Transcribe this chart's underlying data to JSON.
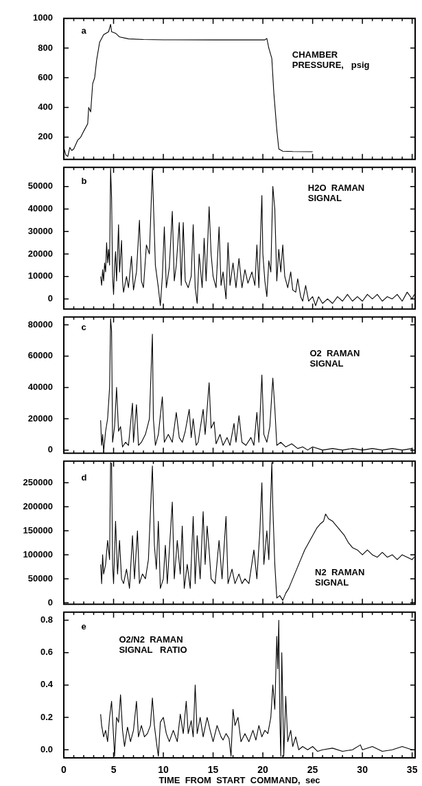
{
  "chart_data": [
    {
      "type": "line",
      "annotations": [
        "a",
        "CHAMBER\nPRESSURE,   psig"
      ],
      "tick_labels": "y",
      "xlim": [
        0,
        35.3
      ],
      "ylim": [
        50,
        1000
      ],
      "xticks": [
        0,
        {
          "value": 1,
          "label": null
        },
        {
          "value": 2,
          "label": null
        },
        {
          "value": 3,
          "label": null
        },
        {
          "value": 4,
          "label": null
        },
        5,
        {
          "value": 6,
          "label": null
        },
        {
          "value": 7,
          "label": null
        },
        {
          "value": 8,
          "label": null
        },
        {
          "value": 9,
          "label": null
        },
        10,
        {
          "value": 11,
          "label": null
        },
        {
          "value": 12,
          "label": null
        },
        {
          "value": 13,
          "label": null
        },
        {
          "value": 14,
          "label": null
        },
        15,
        {
          "value": 16,
          "label": null
        },
        {
          "value": 17,
          "label": null
        },
        {
          "value": 18,
          "label": null
        },
        {
          "value": 19,
          "label": null
        },
        20,
        {
          "value": 21,
          "label": null
        },
        {
          "value": 22,
          "label": null
        },
        {
          "value": 23,
          "label": null
        },
        {
          "value": 24,
          "label": null
        },
        25,
        {
          "value": 26,
          "label": null
        },
        {
          "value": 27,
          "label": null
        },
        {
          "value": 28,
          "label": null
        },
        {
          "value": 29,
          "label": null
        },
        30,
        {
          "value": 31,
          "label": null
        },
        {
          "value": 32,
          "label": null
        },
        {
          "value": 33,
          "label": null
        },
        {
          "value": 34,
          "label": null
        },
        35
      ],
      "yticks": [
        200,
        400,
        600,
        800,
        1000
      ],
      "x": [
        0,
        0.2,
        0.4,
        0.6,
        0.8,
        1.0,
        1.4,
        1.7,
        2.0,
        2.4,
        2.5,
        2.7,
        2.9,
        3.1,
        3.3,
        3.6,
        4.0,
        4.5,
        4.7,
        4.8,
        5.2,
        5.6,
        6.5,
        8,
        10,
        15,
        19,
        20.2,
        20.4,
        20.6,
        20.9,
        21.1,
        21.4,
        21.6,
        22,
        23,
        25
      ],
      "series": [
        {
          "color": "#000000",
          "values": [
            130,
            80,
            70,
            130,
            110,
            120,
            180,
            200,
            240,
            290,
            400,
            370,
            560,
            600,
            720,
            840,
            890,
            910,
            960,
            910,
            900,
            875,
            862,
            858,
            856,
            855,
            855,
            855,
            865,
            800,
            730,
            500,
            250,
            120,
            105,
            103,
            102
          ]
        }
      ]
    },
    {
      "type": "line",
      "annotations": [
        "b",
        "H2O  RAMAN\nSIGNAL"
      ],
      "tick_labels": "y",
      "xlim": [
        0,
        35.3
      ],
      "ylim": [
        -4500,
        58500
      ],
      "xticks": [
        0,
        {
          "value": 1,
          "label": null
        },
        {
          "value": 2,
          "label": null
        },
        {
          "value": 3,
          "label": null
        },
        {
          "value": 4,
          "label": null
        },
        5,
        {
          "value": 6,
          "label": null
        },
        {
          "value": 7,
          "label": null
        },
        {
          "value": 8,
          "label": null
        },
        {
          "value": 9,
          "label": null
        },
        10,
        {
          "value": 11,
          "label": null
        },
        {
          "value": 12,
          "label": null
        },
        {
          "value": 13,
          "label": null
        },
        {
          "value": 14,
          "label": null
        },
        15,
        {
          "value": 16,
          "label": null
        },
        {
          "value": 17,
          "label": null
        },
        {
          "value": 18,
          "label": null
        },
        {
          "value": 19,
          "label": null
        },
        20,
        {
          "value": 21,
          "label": null
        },
        {
          "value": 22,
          "label": null
        },
        {
          "value": 23,
          "label": null
        },
        {
          "value": 24,
          "label": null
        },
        25,
        {
          "value": 26,
          "label": null
        },
        {
          "value": 27,
          "label": null
        },
        {
          "value": 28,
          "label": null
        },
        {
          "value": 29,
          "label": null
        },
        30,
        {
          "value": 31,
          "label": null
        },
        {
          "value": 32,
          "label": null
        },
        {
          "value": 33,
          "label": null
        },
        {
          "value": 34,
          "label": null
        },
        35
      ],
      "yticks": [
        0,
        10000,
        20000,
        30000,
        40000,
        50000
      ],
      "x": [
        3.7,
        3.8,
        3.9,
        4.0,
        4.1,
        4.2,
        4.3,
        4.4,
        4.5,
        4.6,
        4.7,
        4.8,
        4.9,
        5.0,
        5.1,
        5.2,
        5.3,
        5.5,
        5.6,
        5.8,
        5.9,
        6.0,
        6.3,
        6.5,
        6.8,
        7.0,
        7.3,
        7.6,
        7.8,
        8.0,
        8.3,
        8.6,
        8.9,
        9.0,
        9.2,
        9.5,
        9.7,
        9.9,
        10.1,
        10.3,
        10.6,
        10.9,
        11.1,
        11.3,
        11.6,
        11.8,
        12.0,
        12.2,
        12.5,
        12.8,
        13.0,
        13.2,
        13.4,
        13.6,
        13.9,
        14.1,
        14.3,
        14.6,
        14.8,
        15.0,
        15.3,
        15.6,
        15.8,
        16.0,
        16.3,
        16.5,
        16.7,
        17.0,
        17.3,
        17.6,
        17.9,
        18.2,
        18.5,
        18.9,
        19.2,
        19.4,
        19.6,
        19.9,
        20.0,
        20.2,
        20.4,
        20.6,
        20.8,
        21.0,
        21.2,
        21.4,
        21.6,
        21.8,
        22.0,
        22.2,
        22.5,
        22.8,
        23.0,
        23.3,
        23.5,
        23.8,
        24.0,
        24.3,
        24.6,
        25.0,
        25.3,
        25.6,
        26.0,
        26.5,
        27.0,
        27.5,
        28.0,
        28.5,
        29.0,
        29.5,
        30.0,
        30.5,
        31.0,
        31.5,
        32.0,
        32.5,
        33.0,
        33.5,
        34.0,
        34.5,
        35.0,
        35.2
      ],
      "series": [
        {
          "color": "#000000",
          "values": [
            10000,
            6000,
            13000,
            8000,
            16000,
            12000,
            25000,
            16000,
            22000,
            15000,
            58000,
            45000,
            10000,
            2000,
            14000,
            21000,
            8000,
            33000,
            12000,
            26000,
            8000,
            3000,
            10000,
            5000,
            19000,
            4000,
            12000,
            35000,
            8000,
            5000,
            24000,
            20000,
            58000,
            43000,
            15000,
            5000,
            -3000,
            10000,
            32000,
            5000,
            14000,
            39000,
            8000,
            15000,
            34000,
            6000,
            34000,
            8000,
            5000,
            10000,
            33000,
            5000,
            -2000,
            20000,
            5000,
            27000,
            8000,
            41000,
            20000,
            10000,
            5000,
            32000,
            6000,
            12000,
            0,
            25000,
            6000,
            16000,
            5000,
            18000,
            5000,
            13000,
            7000,
            12000,
            6000,
            24000,
            5000,
            46000,
            20000,
            8000,
            1000,
            17000,
            12000,
            50000,
            40000,
            8000,
            22000,
            12000,
            24000,
            10000,
            5000,
            12000,
            4000,
            3000,
            9000,
            1000,
            -1000,
            6000,
            -1000,
            1000,
            -3000,
            1000,
            -2000,
            0,
            -2000,
            1000,
            -1000,
            2000,
            -1000,
            1000,
            -1000,
            2000,
            0,
            2000,
            -1000,
            1000,
            0,
            2000,
            -1000,
            3000,
            0,
            2000
          ]
        }
      ]
    },
    {
      "type": "line",
      "annotations": [
        "c",
        "O2  RAMAN\nSIGNAL"
      ],
      "tick_labels": "y",
      "xlim": [
        0,
        35.3
      ],
      "ylim": [
        -2000,
        85000
      ],
      "xticks": [
        0,
        {
          "value": 1,
          "label": null
        },
        {
          "value": 2,
          "label": null
        },
        {
          "value": 3,
          "label": null
        },
        {
          "value": 4,
          "label": null
        },
        5,
        {
          "value": 6,
          "label": null
        },
        {
          "value": 7,
          "label": null
        },
        {
          "value": 8,
          "label": null
        },
        {
          "value": 9,
          "label": null
        },
        10,
        {
          "value": 11,
          "label": null
        },
        {
          "value": 12,
          "label": null
        },
        {
          "value": 13,
          "label": null
        },
        {
          "value": 14,
          "label": null
        },
        15,
        {
          "value": 16,
          "label": null
        },
        {
          "value": 17,
          "label": null
        },
        {
          "value": 18,
          "label": null
        },
        {
          "value": 19,
          "label": null
        },
        20,
        {
          "value": 21,
          "label": null
        },
        {
          "value": 22,
          "label": null
        },
        {
          "value": 23,
          "label": null
        },
        {
          "value": 24,
          "label": null
        },
        25,
        {
          "value": 26,
          "label": null
        },
        {
          "value": 27,
          "label": null
        },
        {
          "value": 28,
          "label": null
        },
        {
          "value": 29,
          "label": null
        },
        30,
        {
          "value": 31,
          "label": null
        },
        {
          "value": 32,
          "label": null
        },
        {
          "value": 33,
          "label": null
        },
        {
          "value": 34,
          "label": null
        },
        35
      ],
      "yticks": [
        0,
        20000,
        40000,
        60000,
        80000
      ],
      "x": [
        3.7,
        3.8,
        3.9,
        4.0,
        4.2,
        4.4,
        4.6,
        4.7,
        4.8,
        4.9,
        5.1,
        5.3,
        5.5,
        5.7,
        5.9,
        6.2,
        6.5,
        6.9,
        7.0,
        7.3,
        7.5,
        7.8,
        8.2,
        8.6,
        8.9,
        9.0,
        9.2,
        9.5,
        9.9,
        10.1,
        10.5,
        10.9,
        11.3,
        11.6,
        11.9,
        12.2,
        12.6,
        12.8,
        13.0,
        13.3,
        13.5,
        14.0,
        14.2,
        14.6,
        14.8,
        15.1,
        15.3,
        15.7,
        16.0,
        16.4,
        16.7,
        17.1,
        17.3,
        17.6,
        17.9,
        18.3,
        18.8,
        19.1,
        19.4,
        19.6,
        19.9,
        20.1,
        20.4,
        20.7,
        21.0,
        21.2,
        21.4,
        21.8,
        22.3,
        22.9,
        23.5,
        24.0,
        24.5,
        25.0,
        26,
        27,
        28,
        29,
        30,
        31,
        32,
        33,
        34,
        35
      ],
      "series": [
        {
          "color": "#000000",
          "values": [
            19000,
            3000,
            10000,
            -1000,
            12000,
            20000,
            40000,
            84000,
            76000,
            5000,
            15000,
            40000,
            12000,
            15000,
            2000,
            5000,
            3000,
            30000,
            5000,
            29000,
            3000,
            5000,
            10000,
            20000,
            74000,
            20000,
            3000,
            10000,
            34000,
            5000,
            10000,
            5000,
            24000,
            8000,
            5000,
            12000,
            26000,
            8000,
            20000,
            3000,
            5000,
            26000,
            10000,
            43000,
            14000,
            18000,
            4000,
            10000,
            3000,
            8000,
            3000,
            17000,
            5000,
            22000,
            5000,
            3000,
            8000,
            3000,
            24000,
            5000,
            48000,
            10000,
            5000,
            15000,
            46000,
            27000,
            3000,
            5000,
            2000,
            4000,
            1000,
            2000,
            0,
            2000,
            0,
            1000,
            0,
            1000,
            0,
            1000,
            0,
            1000,
            0,
            1000
          ]
        }
      ]
    },
    {
      "type": "line",
      "annotations": [
        "d",
        "N2  RAMAN\nSIGNAL"
      ],
      "tick_labels": "y",
      "xlim": [
        0,
        35.3
      ],
      "ylim": [
        -3000,
        295000
      ],
      "xticks": [
        0,
        {
          "value": 1,
          "label": null
        },
        {
          "value": 2,
          "label": null
        },
        {
          "value": 3,
          "label": null
        },
        {
          "value": 4,
          "label": null
        },
        5,
        {
          "value": 6,
          "label": null
        },
        {
          "value": 7,
          "label": null
        },
        {
          "value": 8,
          "label": null
        },
        {
          "value": 9,
          "label": null
        },
        10,
        {
          "value": 11,
          "label": null
        },
        {
          "value": 12,
          "label": null
        },
        {
          "value": 13,
          "label": null
        },
        {
          "value": 14,
          "label": null
        },
        15,
        {
          "value": 16,
          "label": null
        },
        {
          "value": 17,
          "label": null
        },
        {
          "value": 18,
          "label": null
        },
        {
          "value": 19,
          "label": null
        },
        20,
        {
          "value": 21,
          "label": null
        },
        {
          "value": 22,
          "label": null
        },
        {
          "value": 23,
          "label": null
        },
        {
          "value": 24,
          "label": null
        },
        25,
        {
          "value": 26,
          "label": null
        },
        {
          "value": 27,
          "label": null
        },
        {
          "value": 28,
          "label": null
        },
        {
          "value": 29,
          "label": null
        },
        30,
        {
          "value": 31,
          "label": null
        },
        {
          "value": 32,
          "label": null
        },
        {
          "value": 33,
          "label": null
        },
        {
          "value": 34,
          "label": null
        },
        35
      ],
      "yticks": [
        0,
        50000,
        100000,
        150000,
        200000,
        250000
      ],
      "x": [
        3.7,
        3.8,
        3.9,
        4.0,
        4.2,
        4.4,
        4.6,
        4.7,
        4.8,
        4.9,
        5.0,
        5.2,
        5.4,
        5.6,
        5.8,
        6.0,
        6.3,
        6.6,
        6.9,
        7.1,
        7.4,
        7.6,
        7.9,
        8.2,
        8.5,
        8.9,
        9.1,
        9.3,
        9.5,
        9.7,
        10.0,
        10.2,
        10.4,
        10.9,
        11.1,
        11.4,
        11.7,
        11.9,
        12.1,
        12.4,
        12.7,
        13.0,
        13.2,
        13.4,
        13.7,
        14.0,
        14.2,
        14.4,
        14.6,
        14.8,
        15.2,
        15.6,
        15.9,
        16.3,
        16.5,
        16.9,
        17.2,
        17.6,
        17.9,
        18.2,
        18.6,
        19.1,
        19.4,
        19.7,
        19.9,
        20.1,
        20.4,
        20.6,
        20.9,
        21.0,
        21.2,
        21.4,
        21.7,
        22.0,
        22.3,
        22.6,
        23.0,
        23.4,
        23.8,
        24.2,
        24.6,
        25.0,
        25.4,
        25.8,
        26.1,
        26.3,
        26.6,
        27.0,
        27.4,
        27.8,
        28.2,
        28.6,
        29.0,
        29.5,
        30.0,
        30.5,
        31.0,
        31.5,
        32.0,
        32.5,
        33.0,
        33.5,
        34.0,
        34.5,
        35.0,
        35.2
      ],
      "series": [
        {
          "color": "#000000",
          "values": [
            80000,
            40000,
            100000,
            60000,
            80000,
            130000,
            90000,
            292000,
            290000,
            80000,
            40000,
            170000,
            60000,
            130000,
            50000,
            40000,
            70000,
            30000,
            140000,
            50000,
            150000,
            40000,
            60000,
            50000,
            90000,
            285000,
            120000,
            70000,
            170000,
            30000,
            50000,
            120000,
            40000,
            210000,
            50000,
            130000,
            60000,
            160000,
            30000,
            80000,
            30000,
            180000,
            40000,
            140000,
            50000,
            190000,
            80000,
            160000,
            110000,
            50000,
            40000,
            130000,
            50000,
            180000,
            40000,
            70000,
            40000,
            60000,
            40000,
            50000,
            40000,
            110000,
            50000,
            150000,
            250000,
            80000,
            150000,
            90000,
            292000,
            200000,
            80000,
            10000,
            15000,
            5000,
            20000,
            30000,
            50000,
            70000,
            90000,
            110000,
            125000,
            140000,
            155000,
            165000,
            170000,
            185000,
            175000,
            170000,
            160000,
            150000,
            140000,
            125000,
            115000,
            110000,
            100000,
            110000,
            100000,
            95000,
            105000,
            95000,
            100000,
            90000,
            100000,
            95000,
            90000,
            95000
          ]
        }
      ]
    },
    {
      "type": "line",
      "annotations": [
        "e",
        "O2/N2  RAMAN\nSIGNAL   RATIO"
      ],
      "xlabel": "TIME  FROM  START  COMMAND,  sec",
      "xlim": [
        0,
        35.3
      ],
      "ylim": [
        -0.05,
        0.85
      ],
      "xticks": [
        0,
        {
          "value": 1,
          "label": null
        },
        {
          "value": 2,
          "label": null
        },
        {
          "value": 3,
          "label": null
        },
        {
          "value": 4,
          "label": null
        },
        5,
        {
          "value": 6,
          "label": null
        },
        {
          "value": 7,
          "label": null
        },
        {
          "value": 8,
          "label": null
        },
        {
          "value": 9,
          "label": null
        },
        10,
        {
          "value": 11,
          "label": null
        },
        {
          "value": 12,
          "label": null
        },
        {
          "value": 13,
          "label": null
        },
        {
          "value": 14,
          "label": null
        },
        15,
        {
          "value": 16,
          "label": null
        },
        {
          "value": 17,
          "label": null
        },
        {
          "value": 18,
          "label": null
        },
        {
          "value": 19,
          "label": null
        },
        20,
        {
          "value": 21,
          "label": null
        },
        {
          "value": 22,
          "label": null
        },
        {
          "value": 23,
          "label": null
        },
        {
          "value": 24,
          "label": null
        },
        25,
        {
          "value": 26,
          "label": null
        },
        {
          "value": 27,
          "label": null
        },
        {
          "value": 28,
          "label": null
        },
        {
          "value": 29,
          "label": null
        },
        30,
        {
          "value": 31,
          "label": null
        },
        {
          "value": 32,
          "label": null
        },
        {
          "value": 33,
          "label": null
        },
        {
          "value": 34,
          "label": null
        },
        35
      ],
      "yticks": [
        {
          "value": 0,
          "label": "0.0"
        },
        0.2,
        0.4,
        0.6,
        0.8
      ],
      "x": [
        3.7,
        3.8,
        4.0,
        4.2,
        4.4,
        4.6,
        4.8,
        5.0,
        5.1,
        5.3,
        5.5,
        5.7,
        5.9,
        6.1,
        6.4,
        6.7,
        7.0,
        7.3,
        7.5,
        7.8,
        8.1,
        8.4,
        8.7,
        8.9,
        9.1,
        9.3,
        9.5,
        9.7,
        10.0,
        10.3,
        10.6,
        11.0,
        11.4,
        11.7,
        12.0,
        12.3,
        12.5,
        12.8,
        13.0,
        13.2,
        13.4,
        13.7,
        14.0,
        14.4,
        14.7,
        15.0,
        15.4,
        15.8,
        16.0,
        16.3,
        16.6,
        16.8,
        17.0,
        17.2,
        17.5,
        17.8,
        18.2,
        18.6,
        19.0,
        19.3,
        19.6,
        19.9,
        20.2,
        20.5,
        20.8,
        21.0,
        21.2,
        21.4,
        21.5,
        21.6,
        21.7,
        21.8,
        21.9,
        22.0,
        22.1,
        22.3,
        22.5,
        22.8,
        23.0,
        23.3,
        23.6,
        24.0,
        24.5,
        25.0,
        25.5,
        26,
        27,
        28,
        29,
        29.8,
        30,
        31,
        32,
        33,
        34,
        35
      ],
      "series": [
        {
          "color": "#000000",
          "values": [
            0.22,
            0.15,
            0.08,
            0.12,
            0.05,
            0.2,
            0.3,
            0.08,
            -0.04,
            0.2,
            0.17,
            0.34,
            0.12,
            0.02,
            0.14,
            0.05,
            0.12,
            0.3,
            0.08,
            0.15,
            0.08,
            0.1,
            0.15,
            0.32,
            0.15,
            0.05,
            -0.04,
            0.17,
            0.2,
            0.1,
            0.05,
            0.12,
            0.05,
            0.22,
            0.1,
            0.3,
            0.1,
            0.18,
            0.08,
            0.4,
            0.1,
            0.2,
            0.08,
            0.2,
            0.12,
            0.05,
            0.15,
            0.08,
            0.06,
            0.1,
            0.07,
            -0.04,
            0.25,
            0.15,
            0.2,
            0.05,
            0.1,
            0.05,
            0.12,
            0.06,
            0.15,
            0.08,
            0.12,
            0.1,
            0.2,
            0.4,
            0.25,
            0.7,
            0.5,
            0.8,
            0.2,
            -0.04,
            0.6,
            0.3,
            -0.04,
            0.33,
            0.05,
            0.12,
            0.02,
            0.08,
            0.0,
            0.02,
            0.0,
            0.02,
            -0.01,
            0.0,
            0.01,
            -0.01,
            0.0,
            0.03,
            0.0,
            0.02,
            -0.01,
            0.0,
            0.02,
            0.0
          ]
        }
      ]
    }
  ]
}
